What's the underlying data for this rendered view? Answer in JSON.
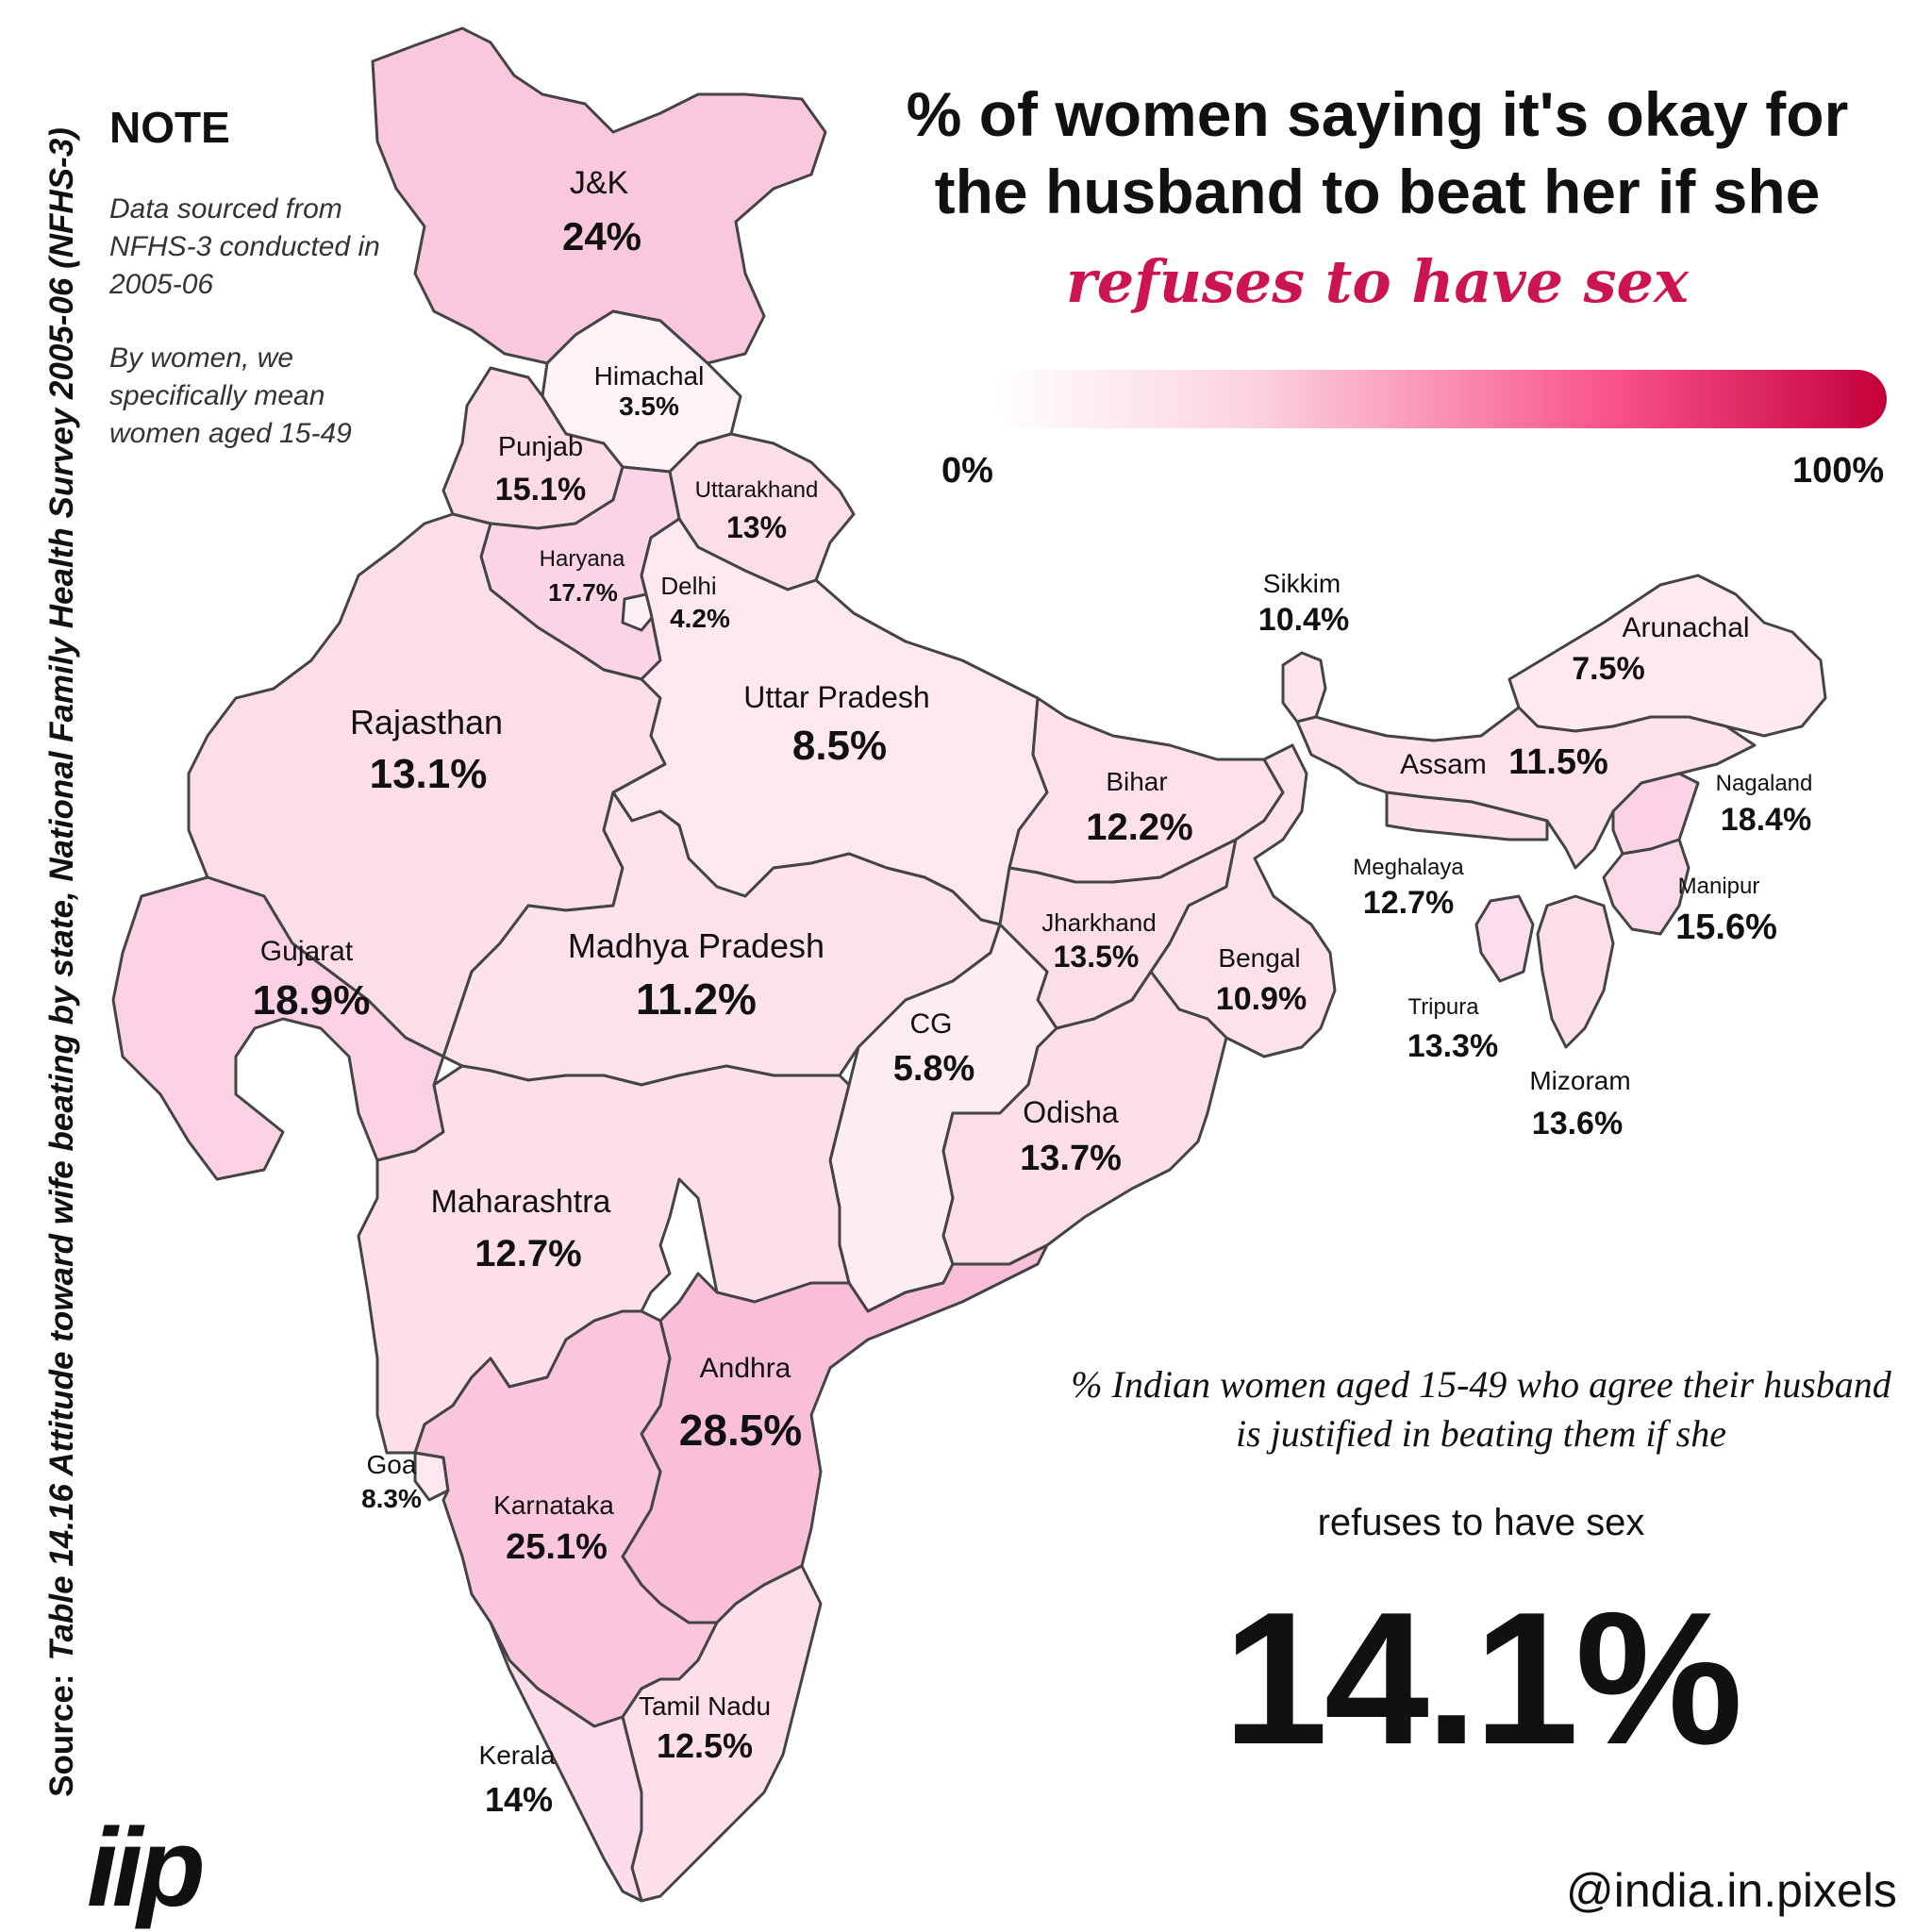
{
  "title": "% of women saying it's okay for the husband to beat her if she",
  "subtitle": "refuses to have sex",
  "source_label": "Source:",
  "source_text": "Table 14.16 Attitude toward wife beating by state, National Family Health Survey 2005-06 (NFHS-3)",
  "note": {
    "heading": "NOTE",
    "line1": "Data sourced from NFHS-3 conducted in 2005-06",
    "line2": "By women, we specifically mean women aged 15-49"
  },
  "scale": {
    "min_label": "0%",
    "max_label": "100%",
    "min": 0,
    "max": 100,
    "colors": [
      "#ffffff",
      "#fbd0e0",
      "#f8508a",
      "#c4003a"
    ]
  },
  "national": {
    "caption": "% Indian women aged 15-49 who agree their husband is justified in beating them if she",
    "sub": "refuses to have sex",
    "value": "14.1%"
  },
  "logo": "iip",
  "handle": "@india.in.pixels",
  "states": {
    "jk": {
      "name": "J&K",
      "value": "24%",
      "pct": 24
    },
    "himachal": {
      "name": "Himachal",
      "value": "3.5%",
      "pct": 3.5
    },
    "punjab": {
      "name": "Punjab",
      "value": "15.1%",
      "pct": 15.1
    },
    "uttarakhand": {
      "name": "Uttarakhand",
      "value": "13%",
      "pct": 13
    },
    "haryana": {
      "name": "Haryana",
      "value": "17.7%",
      "pct": 17.7
    },
    "delhi": {
      "name": "Delhi",
      "value": "4.2%",
      "pct": 4.2
    },
    "rajasthan": {
      "name": "Rajasthan",
      "value": "13.1%",
      "pct": 13.1
    },
    "uttar_pradesh": {
      "name": "Uttar Pradesh",
      "value": "8.5%",
      "pct": 8.5
    },
    "gujarat": {
      "name": "Gujarat",
      "value": "18.9%",
      "pct": 18.9
    },
    "madhya_pradesh": {
      "name": "Madhya Pradesh",
      "value": "11.2%",
      "pct": 11.2
    },
    "bihar": {
      "name": "Bihar",
      "value": "12.2%",
      "pct": 12.2
    },
    "jharkhand": {
      "name": "Jharkhand",
      "value": "13.5%",
      "pct": 13.5
    },
    "bengal": {
      "name": "Bengal",
      "value": "10.9%",
      "pct": 10.9
    },
    "cg": {
      "name": "CG",
      "value": "5.8%",
      "pct": 5.8
    },
    "odisha": {
      "name": "Odisha",
      "value": "13.7%",
      "pct": 13.7
    },
    "maharashtra": {
      "name": "Maharashtra",
      "value": "12.7%",
      "pct": 12.7
    },
    "andhra": {
      "name": "Andhra",
      "value": "28.5%",
      "pct": 28.5
    },
    "goa": {
      "name": "Goa",
      "value": "8.3%",
      "pct": 8.3
    },
    "karnataka": {
      "name": "Karnataka",
      "value": "25.1%",
      "pct": 25.1
    },
    "tamil_nadu": {
      "name": "Tamil Nadu",
      "value": "12.5%",
      "pct": 12.5
    },
    "kerala": {
      "name": "Kerala",
      "value": "14%",
      "pct": 14
    },
    "sikkim": {
      "name": "Sikkim",
      "value": "10.4%",
      "pct": 10.4
    },
    "arunachal": {
      "name": "Arunachal",
      "value": "7.5%",
      "pct": 7.5
    },
    "assam": {
      "name": "Assam",
      "value": "11.5%",
      "pct": 11.5
    },
    "nagaland": {
      "name": "Nagaland",
      "value": "18.4%",
      "pct": 18.4
    },
    "meghalaya": {
      "name": "Meghalaya",
      "value": "12.7%",
      "pct": 12.7
    },
    "manipur": {
      "name": "Manipur",
      "value": "15.6%",
      "pct": 15.6
    },
    "tripura": {
      "name": "Tripura",
      "value": "13.3%",
      "pct": 13.3
    },
    "mizoram": {
      "name": "Mizoram",
      "value": "13.6%",
      "pct": 13.6
    }
  }
}
